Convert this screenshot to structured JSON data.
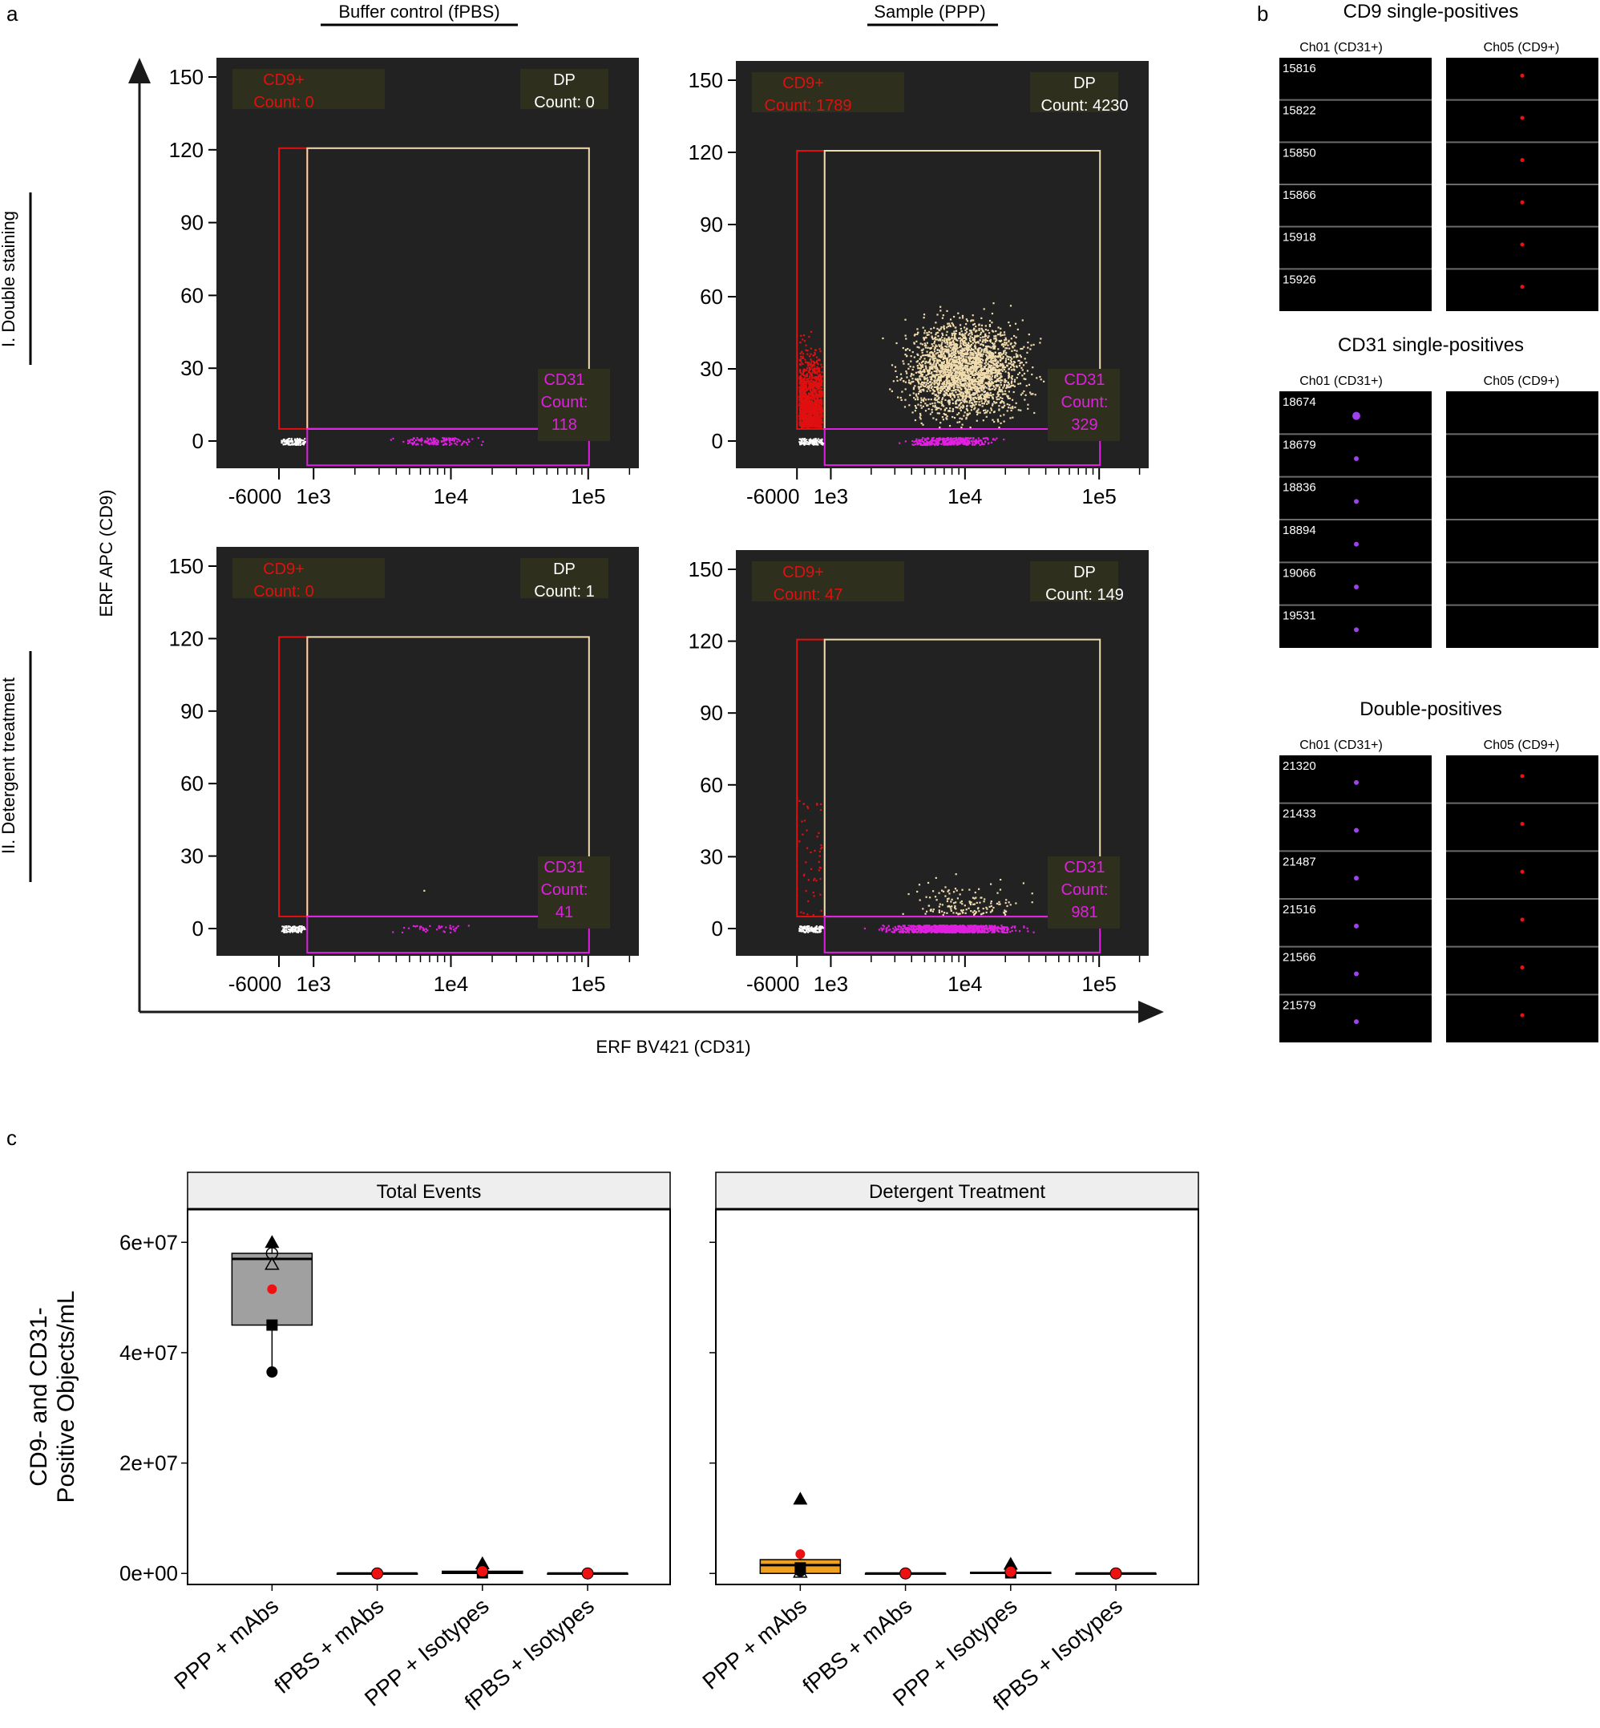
{
  "panel_letters": {
    "a": "a",
    "b": "b",
    "c": "c"
  },
  "colors": {
    "plot_bg": "#222222",
    "cd9_gate": "#e01010",
    "dp_gate": "#f0dcae",
    "cd31_gate": "#e020e0",
    "neg_events": "#ffffff",
    "label_box": "#2f2f1d",
    "arrow": "#1a1a1a",
    "box_total": "#a0a0a0",
    "box_detergent": "#f0a020",
    "mean_point": "#ee1111",
    "strip_bg": "#eeeeee"
  },
  "panel_a": {
    "col_titles": [
      "Buffer control (fPBS)",
      "Sample (PPP)"
    ],
    "row_labels": [
      "I. Double staining",
      "II. Detergent treatment"
    ],
    "y_axis_label": "ERF APC (CD9)",
    "x_axis_label": "ERF BV421 (CD31)",
    "y_ticks": [
      "0",
      "30",
      "60",
      "90",
      "120",
      "150"
    ],
    "x_ticks": [
      "-6000",
      "1e3",
      "1e4",
      "1e5"
    ],
    "gate_names": {
      "cd9": "CD9+",
      "dp": "DP",
      "cd31": "CD31"
    },
    "count_prefix": "Count:",
    "plots": [
      {
        "id": "buffer-double",
        "cd9_count": "Count: 0",
        "dp_count": "Count: 0",
        "cd31_count": "Count:",
        "cd31_value": "118"
      },
      {
        "id": "sample-double",
        "cd9_count": "Count: 1789",
        "dp_count": "Count: 4230",
        "cd31_count": "Count:",
        "cd31_value": "329"
      },
      {
        "id": "buffer-detergent",
        "cd9_count": "Count: 0",
        "dp_count": "Count: 1",
        "cd31_count": "Count:",
        "cd31_value": "41"
      },
      {
        "id": "sample-detergent",
        "cd9_count": "Count: 47",
        "dp_count": "Count: 149",
        "cd31_count": "Count:",
        "cd31_value": "981"
      }
    ]
  },
  "panel_b": {
    "sections": [
      {
        "title": "CD9 single-positives",
        "ch_labels": [
          "Ch01 (CD31+)",
          "Ch05 (CD9+)"
        ],
        "ids": [
          "15816",
          "15822",
          "15850",
          "15866",
          "15918",
          "15926"
        ],
        "ch01_spot": false,
        "ch05_spot": true
      },
      {
        "title": "CD31 single-positives",
        "ch_labels": [
          "Ch01 (CD31+)",
          "Ch05 (CD9+)"
        ],
        "ids": [
          "18674",
          "18679",
          "18836",
          "18894",
          "19066",
          "19531"
        ],
        "ch01_spot": true,
        "ch05_spot": false
      },
      {
        "title": "Double-positives",
        "ch_labels": [
          "Ch01 (CD31+)",
          "Ch05 (CD9+)"
        ],
        "ids": [
          "21320",
          "21433",
          "21487",
          "21516",
          "21566",
          "21579"
        ],
        "ch01_spot": true,
        "ch05_spot": true
      }
    ]
  },
  "chart_data": {
    "type": "box",
    "ylabel": "CD9- and CD31-\nPositive Objects/mL",
    "ylim": [
      -2000000,
      66000000
    ],
    "y_ticks": [
      0,
      20000000,
      40000000,
      60000000
    ],
    "y_tick_labels": [
      "0e+00",
      "2e+07",
      "4e+07",
      "6e+07"
    ],
    "categories": [
      "PPP + mAbs",
      "fPBS + mAbs",
      "PPP + Isotypes",
      "fPBS + Isotypes"
    ],
    "facets": [
      {
        "title": "Total Events",
        "groups": [
          {
            "q1": 45000000,
            "median": 57000000,
            "q3": 58000000,
            "whisker_low": 36500000,
            "whisker_high": 60000000,
            "mean": 51500000,
            "points": [
              {
                "shape": "triangle",
                "y": 60000000
              },
              {
                "shape": "open-triangle",
                "y": 56000000
              },
              {
                "shape": "square",
                "y": 45000000
              },
              {
                "shape": "circle",
                "y": 36500000
              },
              {
                "shape": "open-circle",
                "y": 58000000
              }
            ]
          },
          {
            "q1": 0,
            "median": 0,
            "q3": 0,
            "whisker_low": 0,
            "whisker_high": 0,
            "mean": 0,
            "points": []
          },
          {
            "q1": 0,
            "median": 200000,
            "q3": 400000,
            "whisker_low": 0,
            "whisker_high": 1500000,
            "mean": 400000,
            "points": [
              {
                "shape": "triangle",
                "y": 1800000
              },
              {
                "shape": "square",
                "y": 100000
              }
            ]
          },
          {
            "q1": 0,
            "median": 0,
            "q3": 0,
            "whisker_low": 0,
            "whisker_high": 0,
            "mean": 0,
            "points": []
          }
        ]
      },
      {
        "title": "Detergent Treatment",
        "groups": [
          {
            "q1": 0,
            "median": 1500000,
            "q3": 2500000,
            "whisker_low": 0,
            "whisker_high": 3000000,
            "mean": 3500000,
            "points": [
              {
                "shape": "triangle",
                "y": 13500000
              },
              {
                "shape": "square",
                "y": 1000000
              },
              {
                "shape": "circle",
                "y": 400000
              },
              {
                "shape": "open-triangle",
                "y": 200000
              }
            ]
          },
          {
            "q1": 0,
            "median": 0,
            "q3": 0,
            "whisker_low": 0,
            "whisker_high": 0,
            "mean": 0,
            "points": []
          },
          {
            "q1": 0,
            "median": 100000,
            "q3": 200000,
            "whisker_low": 0,
            "whisker_high": 1200000,
            "mean": 300000,
            "points": [
              {
                "shape": "triangle",
                "y": 1700000
              },
              {
                "shape": "square",
                "y": 100000
              }
            ]
          },
          {
            "q1": 0,
            "median": 0,
            "q3": 0,
            "whisker_low": 0,
            "whisker_high": 0,
            "mean": 0,
            "points": []
          }
        ]
      }
    ]
  }
}
